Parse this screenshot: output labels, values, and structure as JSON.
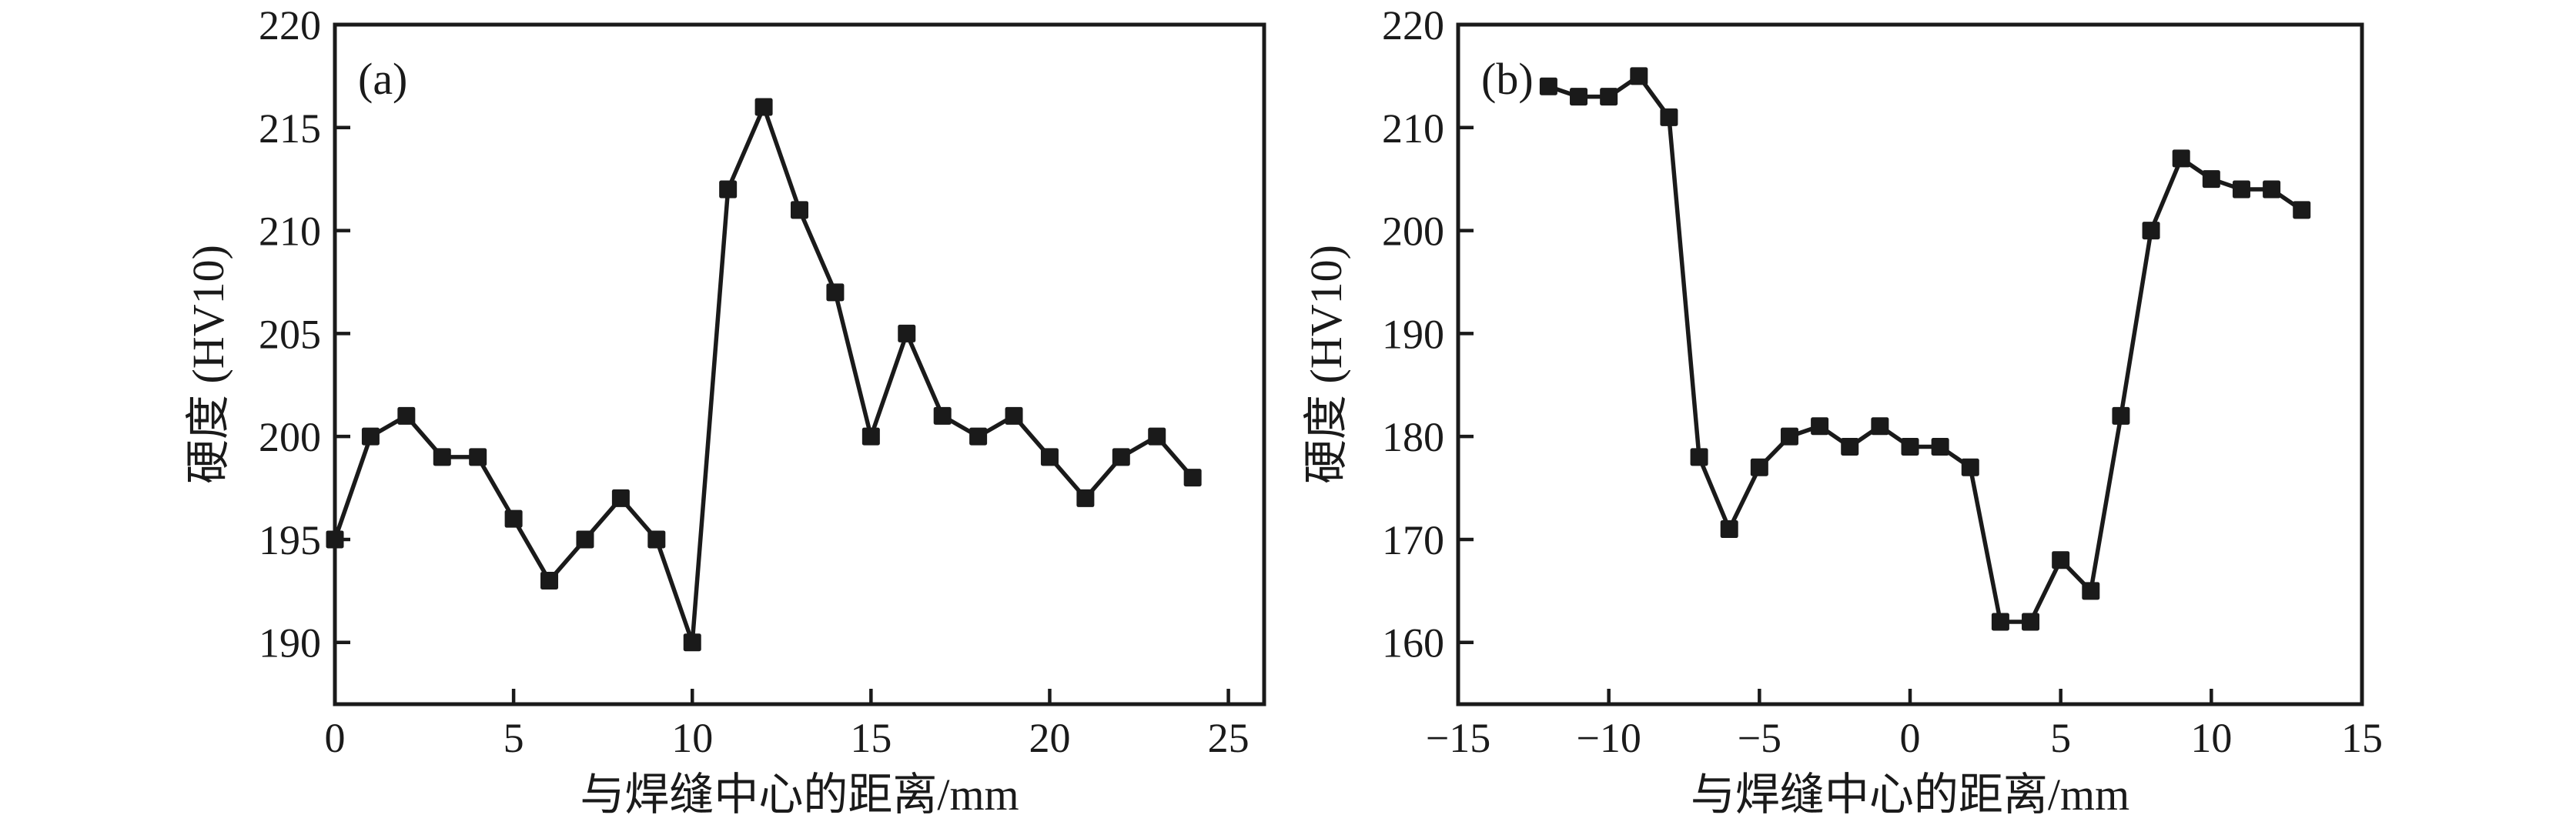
{
  "figure": {
    "background": "#ffffff",
    "ink_color": "#1a1a1a",
    "description_note": ""
  },
  "chart_data": [
    {
      "type": "line",
      "panel_label": "(a)",
      "title": "",
      "xlabel": "与焊缝中心的距离/mm",
      "ylabel": "硬度 (HV10)",
      "xlim": [
        0,
        26
      ],
      "ylim": [
        187,
        220
      ],
      "grid": false,
      "legend": "none",
      "marker": "filled-square",
      "xticks": [
        {
          "v": 0,
          "label": "0"
        },
        {
          "v": 5,
          "label": "5"
        },
        {
          "v": 10,
          "label": "10"
        },
        {
          "v": 15,
          "label": "15"
        },
        {
          "v": 20,
          "label": "20"
        },
        {
          "v": 25,
          "label": "25"
        }
      ],
      "yticks": [
        {
          "v": 190,
          "label": "190"
        },
        {
          "v": 195,
          "label": "195"
        },
        {
          "v": 200,
          "label": "200"
        },
        {
          "v": 205,
          "label": "205"
        },
        {
          "v": 210,
          "label": "210"
        },
        {
          "v": 215,
          "label": "215"
        },
        {
          "v": 220,
          "label": "220"
        }
      ],
      "x": [
        0,
        1,
        2,
        3,
        4,
        5,
        6,
        7,
        8,
        9,
        10,
        11,
        12,
        13,
        14,
        15,
        16,
        17,
        18,
        19,
        20,
        21,
        22,
        23,
        24
      ],
      "y": [
        195,
        200,
        201,
        199,
        199,
        196,
        193,
        195,
        197,
        195,
        190,
        212,
        216,
        211,
        207,
        200,
        205,
        201,
        200,
        201,
        199,
        197,
        199,
        200,
        198
      ]
    },
    {
      "type": "line",
      "panel_label": "(b)",
      "title": "",
      "xlabel": "与焊缝中心的距离/mm",
      "ylabel": "硬度 (HV10)",
      "xlim": [
        -15,
        15
      ],
      "ylim": [
        154,
        220
      ],
      "grid": false,
      "legend": "none",
      "marker": "filled-square",
      "xticks": [
        {
          "v": -15,
          "label": "−15"
        },
        {
          "v": -10,
          "label": "−10"
        },
        {
          "v": -5,
          "label": "−5"
        },
        {
          "v": 0,
          "label": "0"
        },
        {
          "v": 5,
          "label": "5"
        },
        {
          "v": 10,
          "label": "10"
        },
        {
          "v": 15,
          "label": "15"
        }
      ],
      "yticks": [
        {
          "v": 160,
          "label": "160"
        },
        {
          "v": 170,
          "label": "170"
        },
        {
          "v": 180,
          "label": "180"
        },
        {
          "v": 190,
          "label": "190"
        },
        {
          "v": 200,
          "label": "200"
        },
        {
          "v": 210,
          "label": "210"
        },
        {
          "v": 220,
          "label": "220"
        }
      ],
      "x": [
        -12,
        -11,
        -10,
        -9,
        -8,
        -7,
        -6,
        -5,
        -4,
        -3,
        -2,
        -1,
        0,
        1,
        2,
        3,
        4,
        5,
        6,
        7,
        8,
        9,
        10,
        11,
        12,
        13
      ],
      "y": [
        214,
        213,
        213,
        215,
        211,
        178,
        171,
        177,
        180,
        181,
        179,
        181,
        179,
        179,
        177,
        162,
        162,
        168,
        165,
        182,
        200,
        207,
        205,
        204,
        204,
        202
      ]
    }
  ]
}
